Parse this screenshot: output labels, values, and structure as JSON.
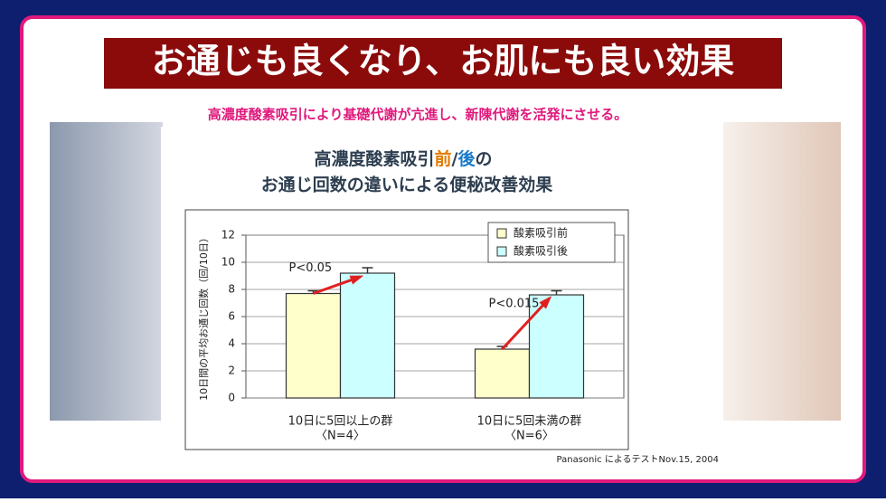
{
  "slide": {
    "title": "お通じも良くなり、お肌にも良い効果",
    "subtitle": "高濃度酸素吸引により基礎代謝が亢進し、新陳代謝を活発にさせる。",
    "source": "Panasonic によるテストNov.15, 2004"
  },
  "chart_data": {
    "type": "bar",
    "title_line1": [
      "高濃度酸素吸引",
      "前",
      "/",
      "後",
      "の"
    ],
    "title_line2": "お通じ回数の違いによる便秘改善効果",
    "y_label": "10日間の平均お通じ回数（回/10日）",
    "categories": [
      "10日に5回以上の群",
      "10日に5回未満の群"
    ],
    "category_sublabels": [
      "〈N=4〉",
      "〈N=6〉"
    ],
    "series": [
      {
        "name": "酸素吸引前",
        "color": "#ffffcc",
        "values": [
          7.7,
          3.6
        ],
        "errors": [
          0.2,
          0.2
        ]
      },
      {
        "name": "酸素吸引後",
        "color": "#ccffff",
        "values": [
          9.2,
          7.6
        ],
        "errors": [
          0.4,
          0.3
        ]
      }
    ],
    "annotations": [
      "P<0.05",
      "P<0.015"
    ],
    "ylim": [
      0,
      12
    ],
    "yticks": [
      0,
      2,
      4,
      6,
      8,
      10,
      12
    ],
    "grid": true,
    "legend": "upper right"
  }
}
